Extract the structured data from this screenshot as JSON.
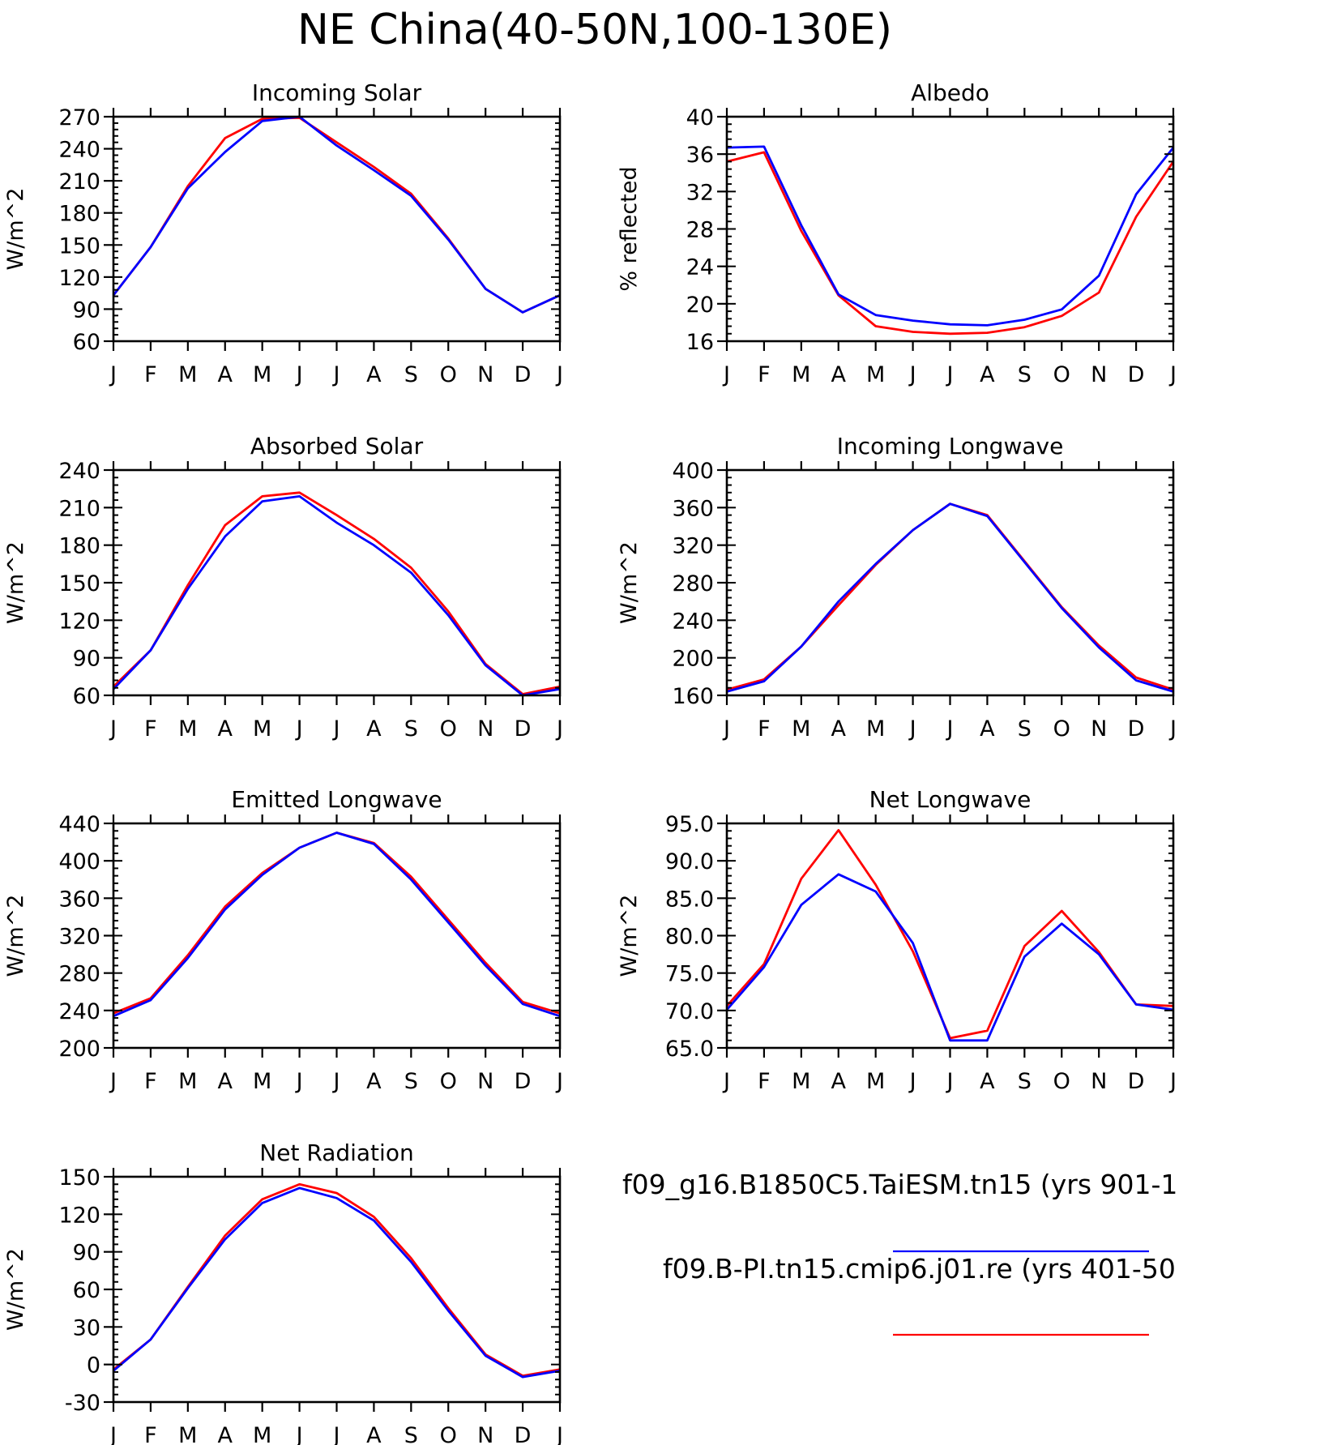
{
  "figure": {
    "title": "NE China(40-50N,100-130E)"
  },
  "legend": [
    {
      "label": "f09_g16.B1850C5.TaiESM.tn15 (yrs 901-1",
      "color": "#0000ff"
    },
    {
      "label": "f09.B-PI.tn15.cmip6.j01.re (yrs 401-50",
      "color": "#ff0000"
    }
  ],
  "chart_data": [
    {
      "type": "line",
      "title": "Incoming Solar",
      "xlabel": "",
      "ylabel": "W/m^2",
      "categories": [
        "J",
        "F",
        "M",
        "A",
        "M",
        "J",
        "J",
        "A",
        "S",
        "O",
        "N",
        "D",
        "J"
      ],
      "ylim": [
        60,
        270
      ],
      "yticks": [
        60,
        90,
        120,
        150,
        180,
        210,
        240,
        270
      ],
      "ytick_labels": [
        "60",
        "90",
        "120",
        "150",
        "180",
        "210",
        "240",
        "270"
      ],
      "series": [
        {
          "color": "#ff0000",
          "values": [
            103,
            148,
            205,
            250,
            268,
            269,
            246,
            223,
            198,
            156,
            109,
            87,
            103
          ]
        },
        {
          "color": "#0000ff",
          "values": [
            103,
            148,
            203,
            237,
            266,
            270,
            243,
            220,
            196,
            155,
            109,
            87,
            103
          ]
        }
      ]
    },
    {
      "type": "line",
      "title": "Albedo",
      "xlabel": "",
      "ylabel": "% reflected",
      "categories": [
        "J",
        "F",
        "M",
        "A",
        "M",
        "J",
        "J",
        "A",
        "S",
        "O",
        "N",
        "D",
        "J"
      ],
      "ylim": [
        16,
        40
      ],
      "yticks": [
        16,
        20,
        24,
        28,
        32,
        36,
        40
      ],
      "ytick_labels": [
        "16",
        "20",
        "24",
        "28",
        "32",
        "36",
        "40"
      ],
      "series": [
        {
          "color": "#ff0000",
          "values": [
            35.2,
            36.2,
            27.8,
            20.9,
            17.6,
            17.0,
            16.8,
            16.9,
            17.5,
            18.7,
            21.2,
            29.3,
            35.2
          ]
        },
        {
          "color": "#0000ff",
          "values": [
            36.7,
            36.8,
            28.4,
            21.0,
            18.8,
            18.2,
            17.8,
            17.7,
            18.3,
            19.4,
            23.0,
            31.7,
            36.7
          ]
        }
      ]
    },
    {
      "type": "line",
      "title": "Absorbed Solar",
      "xlabel": "",
      "ylabel": "W/m^2",
      "categories": [
        "J",
        "F",
        "M",
        "A",
        "M",
        "J",
        "J",
        "A",
        "S",
        "O",
        "N",
        "D",
        "J"
      ],
      "ylim": [
        60,
        240
      ],
      "yticks": [
        60,
        90,
        120,
        150,
        180,
        210,
        240
      ],
      "ytick_labels": [
        "60",
        "90",
        "120",
        "150",
        "180",
        "210",
        "240"
      ],
      "series": [
        {
          "color": "#ff0000",
          "values": [
            67,
            96,
            148,
            196,
            219,
            222,
            204,
            185,
            162,
            127,
            85,
            61,
            67
          ]
        },
        {
          "color": "#0000ff",
          "values": [
            65,
            96,
            145,
            187,
            215,
            219,
            198,
            180,
            158,
            124,
            84,
            60,
            65
          ]
        }
      ]
    },
    {
      "type": "line",
      "title": "Incoming Longwave",
      "xlabel": "",
      "ylabel": "W/m^2",
      "categories": [
        "J",
        "F",
        "M",
        "A",
        "M",
        "J",
        "J",
        "A",
        "S",
        "O",
        "N",
        "D",
        "J"
      ],
      "ylim": [
        160,
        400
      ],
      "yticks": [
        160,
        200,
        240,
        280,
        320,
        360,
        400
      ],
      "ytick_labels": [
        "160",
        "200",
        "240",
        "280",
        "320",
        "360",
        "400"
      ],
      "series": [
        {
          "color": "#ff0000",
          "values": [
            166,
            177,
            212,
            256,
            299,
            336,
            364,
            352,
            303,
            254,
            213,
            179,
            166
          ]
        },
        {
          "color": "#0000ff",
          "values": [
            164,
            175,
            212,
            260,
            300,
            336,
            364,
            351,
            302,
            253,
            211,
            176,
            164
          ]
        }
      ]
    },
    {
      "type": "line",
      "title": "Emitted Longwave",
      "xlabel": "",
      "ylabel": "W/m^2",
      "categories": [
        "J",
        "F",
        "M",
        "A",
        "M",
        "J",
        "J",
        "A",
        "S",
        "O",
        "N",
        "D",
        "J"
      ],
      "ylim": [
        200,
        440
      ],
      "yticks": [
        200,
        240,
        280,
        320,
        360,
        400,
        440
      ],
      "ytick_labels": [
        "200",
        "240",
        "280",
        "320",
        "360",
        "400",
        "440"
      ],
      "series": [
        {
          "color": "#ff0000",
          "values": [
            237,
            253,
            299,
            351,
            387,
            414,
            430,
            419,
            383,
            337,
            291,
            249,
            237
          ]
        },
        {
          "color": "#0000ff",
          "values": [
            234,
            251,
            296,
            348,
            385,
            414,
            430,
            418,
            380,
            334,
            288,
            247,
            234
          ]
        }
      ]
    },
    {
      "type": "line",
      "title": "Net Longwave",
      "xlabel": "",
      "ylabel": "W/m^2",
      "categories": [
        "J",
        "F",
        "M",
        "A",
        "M",
        "J",
        "J",
        "A",
        "S",
        "O",
        "N",
        "D",
        "J"
      ],
      "ylim": [
        65,
        95
      ],
      "yticks": [
        65,
        70,
        75,
        80,
        85,
        90,
        95
      ],
      "ytick_labels": [
        "65.0",
        "70.0",
        "75.0",
        "80.0",
        "85.0",
        "90.0",
        "95.0"
      ],
      "series": [
        {
          "color": "#ff0000",
          "values": [
            70.6,
            76.2,
            87.6,
            94.1,
            86.8,
            77.9,
            66.3,
            67.3,
            78.6,
            83.3,
            77.8,
            70.8,
            70.6
          ]
        },
        {
          "color": "#0000ff",
          "values": [
            70.1,
            75.8,
            84.1,
            88.2,
            85.9,
            79.0,
            66.0,
            66.0,
            77.2,
            81.6,
            77.5,
            70.8,
            70.1
          ]
        }
      ]
    },
    {
      "type": "line",
      "title": "Net Radiation",
      "xlabel": "",
      "ylabel": "W/m^2",
      "categories": [
        "J",
        "F",
        "M",
        "A",
        "M",
        "J",
        "J",
        "A",
        "S",
        "O",
        "N",
        "D",
        "J"
      ],
      "ylim": [
        -30,
        150
      ],
      "yticks": [
        -30,
        0,
        30,
        60,
        90,
        120,
        150
      ],
      "ytick_labels": [
        "-30",
        "0",
        "30",
        "60",
        "90",
        "120",
        "150"
      ],
      "series": [
        {
          "color": "#ff0000",
          "values": [
            -4,
            20,
            62,
            103,
            132,
            144,
            137,
            118,
            85,
            45,
            8,
            -9,
            -4
          ]
        },
        {
          "color": "#0000ff",
          "values": [
            -5,
            20,
            61,
            100,
            129,
            141,
            133,
            115,
            82,
            43,
            7,
            -10,
            -5
          ]
        }
      ]
    }
  ]
}
